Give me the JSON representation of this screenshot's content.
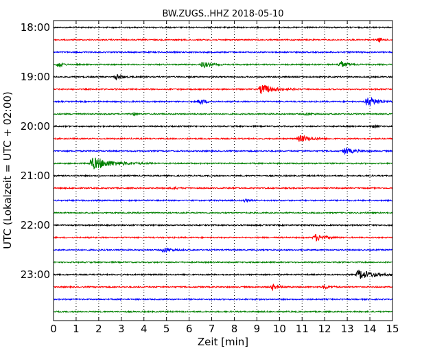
{
  "chart_data": {
    "type": "line",
    "title": "BW.ZUGS..HHZ 2018-05-10",
    "xlabel": "Zeit  [min]",
    "ylabel": "UTC (Lokalzeit = UTC + 02:00)",
    "xlim": [
      0,
      15
    ],
    "xticks": [
      "0",
      "1",
      "2",
      "3",
      "4",
      "5",
      "6",
      "7",
      "8",
      "9",
      "10",
      "11",
      "12",
      "13",
      "14",
      "15"
    ],
    "y_ticks": [
      "18:00",
      "19:00",
      "20:00",
      "21:00",
      "22:00",
      "23:00"
    ],
    "grid": "vertical dotted",
    "colors": [
      "#000000",
      "#ff0000",
      "#0000ff",
      "#008000"
    ],
    "traces": [
      {
        "label": "18:00",
        "color": "#000000",
        "events": []
      },
      {
        "label": "18:15",
        "color": "#ff0000",
        "events": [
          {
            "t": 14.4,
            "amp": 3,
            "dur": 0.3
          }
        ]
      },
      {
        "label": "18:30",
        "color": "#0000ff",
        "events": []
      },
      {
        "label": "18:45",
        "color": "#008000",
        "events": [
          {
            "t": 0.25,
            "amp": 5,
            "dur": 0.3
          },
          {
            "t": 6.6,
            "amp": 5,
            "dur": 0.6
          },
          {
            "t": 12.7,
            "amp": 5,
            "dur": 0.6
          }
        ]
      },
      {
        "label": "19:00",
        "color": "#000000",
        "events": [
          {
            "t": 2.8,
            "amp": 4,
            "dur": 0.5
          }
        ]
      },
      {
        "label": "19:15",
        "color": "#ff0000",
        "events": [
          {
            "t": 9.2,
            "amp": 7,
            "dur": 1.2
          }
        ]
      },
      {
        "label": "19:30",
        "color": "#0000ff",
        "events": [
          {
            "t": 6.5,
            "amp": 4,
            "dur": 0.5
          },
          {
            "t": 13.9,
            "amp": 7,
            "dur": 1.0
          }
        ]
      },
      {
        "label": "19:45",
        "color": "#008000",
        "events": [
          {
            "t": 3.6,
            "amp": 3,
            "dur": 0.1
          },
          {
            "t": 11.2,
            "amp": 2,
            "dur": 0.4
          }
        ]
      },
      {
        "label": "20:00",
        "color": "#000000",
        "events": [
          {
            "t": 14.2,
            "amp": 2,
            "dur": 0.3
          }
        ]
      },
      {
        "label": "20:15",
        "color": "#ff0000",
        "events": [
          {
            "t": 10.9,
            "amp": 5,
            "dur": 0.9
          }
        ]
      },
      {
        "label": "20:30",
        "color": "#0000ff",
        "events": [
          {
            "t": 12.9,
            "amp": 5,
            "dur": 0.8
          }
        ]
      },
      {
        "label": "20:45",
        "color": "#008000",
        "events": [
          {
            "t": 1.7,
            "amp": 9,
            "dur": 1.8
          }
        ]
      },
      {
        "label": "21:00",
        "color": "#000000",
        "events": []
      },
      {
        "label": "21:15",
        "color": "#ff0000",
        "events": [
          {
            "t": 5.3,
            "amp": 2,
            "dur": 0.3
          }
        ]
      },
      {
        "label": "21:30",
        "color": "#0000ff",
        "events": [
          {
            "t": 8.5,
            "amp": 2,
            "dur": 0.3
          }
        ]
      },
      {
        "label": "21:45",
        "color": "#008000",
        "events": []
      },
      {
        "label": "22:00",
        "color": "#000000",
        "events": []
      },
      {
        "label": "22:15",
        "color": "#ff0000",
        "events": [
          {
            "t": 11.6,
            "amp": 5,
            "dur": 0.8
          }
        ]
      },
      {
        "label": "22:30",
        "color": "#0000ff",
        "events": [
          {
            "t": 4.9,
            "amp": 4,
            "dur": 0.6
          }
        ]
      },
      {
        "label": "22:45",
        "color": "#008000",
        "events": []
      },
      {
        "label": "23:00",
        "color": "#000000",
        "events": [
          {
            "t": 13.5,
            "amp": 7,
            "dur": 1.4
          }
        ]
      },
      {
        "label": "23:15",
        "color": "#ff0000",
        "events": [
          {
            "t": 9.7,
            "amp": 4,
            "dur": 0.6
          },
          {
            "t": 12.0,
            "amp": 3,
            "dur": 0.5
          }
        ]
      },
      {
        "label": "23:30",
        "color": "#0000ff",
        "events": []
      },
      {
        "label": "23:45",
        "color": "#008000",
        "events": []
      }
    ]
  }
}
